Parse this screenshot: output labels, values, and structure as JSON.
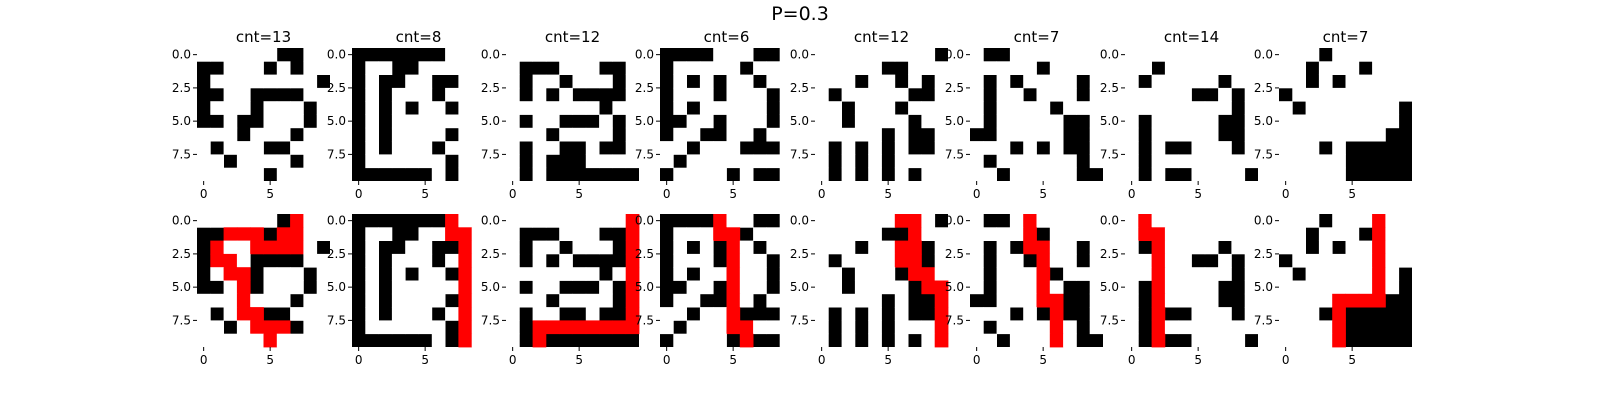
{
  "figure": {
    "title": "P=0.3"
  },
  "colors": {
    "wall": "#000000",
    "open": "#ffffff",
    "path": "#ff0000"
  },
  "chart_data": {
    "type": "heatmap",
    "grid_size": 10,
    "xlim": [
      -0.5,
      9.5
    ],
    "ylim": [
      9.5,
      -0.5
    ],
    "xticks": [
      0,
      5
    ],
    "yticks": [
      "0.0",
      "2.5",
      "5.0",
      "7.5"
    ],
    "cell_legend": {
      "0": "wall (black)",
      "1": "open (white)",
      "2": "path (red)"
    },
    "panels": [
      {
        "title": "cnt=13",
        "maze": [
          "1111110011",
          "0011101011",
          "0111111110",
          "0011000011",
          "0111011101",
          "0010011101",
          "1110111011",
          "1011100111",
          "1101111011",
          "1111101111"
        ],
        "solution": [
          "0000000200",
          "0022202200",
          "0200222200",
          "0220000000",
          "0022000000",
          "0002000000",
          "0002000000",
          "0002200000",
          "0000222000",
          "0000020000"
        ]
      },
      {
        "title": "cnt=8",
        "maze": [
          "0000000111",
          "0110011111",
          "0100110011",
          "0101110111",
          "0101011011",
          "0101111111",
          "0101111011",
          "0101110111",
          "0111111011",
          "0000001011"
        ]
      },
      {
        "title": "cnt=12",
        "maze": [
          "1111111111",
          "1000111001",
          "1011011101",
          "1010100001",
          "1111111011",
          "1011000101",
          "1110111101",
          "1011001001",
          "1010001111",
          "1010000000"
        ]
      },
      {
        "title": "cnt=6",
        "maze": [
          "0000111001",
          "0111110111",
          "0101011011",
          "0111011101",
          "0101111101",
          "0011011101",
          "0110011011",
          "1101110001",
          "1011111111",
          "0111101001"
        ]
      },
      {
        "title": "cnt=12",
        "maze": [
          "1111111110",
          "1111100111",
          "1110110101",
          "1011111001",
          "1101110111",
          "1101111011",
          "1111101001",
          "1010101001",
          "1010101111",
          "1010101011"
        ]
      },
      {
        "title": "cnt=7",
        "maze": [
          "1001111111",
          "1111101111",
          "1010111101",
          "1011011101",
          "1011110111",
          "1011111001",
          "0011111001",
          "1110101001",
          "1011111101",
          "1101111100"
        ]
      },
      {
        "title": "cnt=14",
        "maze": [
          "1111111111",
          "1101111111",
          "1011111011",
          "1111100101",
          "1111111101",
          "1011111001",
          "1011111001",
          "1010011101",
          "1011111111",
          "1010011110"
        ]
      },
      {
        "title": "cnt=7",
        "maze": [
          "1110111111",
          "1101110111",
          "1101011111",
          "0111111111",
          "1011111110",
          "1111111110",
          "1111111100",
          "1110100000",
          "1111100000",
          "1111100000"
        ]
      }
    ],
    "bottom_row_overlay": "red solution path drawn over the same mazes"
  }
}
